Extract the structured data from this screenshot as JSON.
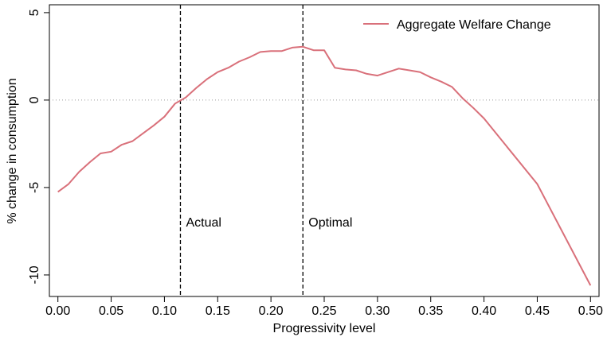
{
  "chart_data": {
    "type": "line",
    "xlabel": "Progressivity level",
    "ylabel": "% change in consumption",
    "x": [
      0.0,
      0.01,
      0.02,
      0.03,
      0.04,
      0.05,
      0.06,
      0.07,
      0.08,
      0.09,
      0.1,
      0.11,
      0.12,
      0.13,
      0.14,
      0.15,
      0.16,
      0.17,
      0.18,
      0.19,
      0.2,
      0.21,
      0.22,
      0.23,
      0.24,
      0.25,
      0.26,
      0.27,
      0.28,
      0.29,
      0.3,
      0.31,
      0.32,
      0.33,
      0.34,
      0.35,
      0.36,
      0.37,
      0.38,
      0.39,
      0.4,
      0.45,
      0.5
    ],
    "series": [
      {
        "name": "Aggregate Welfare Change",
        "color": "#d9707a",
        "values": [
          -5.25,
          -4.8,
          -4.1,
          -3.55,
          -3.05,
          -2.95,
          -2.55,
          -2.35,
          -1.9,
          -1.45,
          -0.95,
          -0.2,
          0.15,
          0.7,
          1.2,
          1.6,
          1.85,
          2.2,
          2.45,
          2.75,
          2.8,
          2.8,
          3.0,
          3.05,
          2.85,
          2.85,
          1.85,
          1.75,
          1.7,
          1.5,
          1.4,
          1.6,
          1.8,
          1.7,
          1.6,
          1.3,
          1.05,
          0.75,
          0.1,
          -0.45,
          -1.05,
          -4.8,
          -10.6
        ]
      }
    ],
    "xlim": [
      -0.008,
      0.508
    ],
    "ylim": [
      -11.23,
      5.45
    ],
    "xticks": [
      {
        "value": 0,
        "label": "0.00"
      },
      {
        "value": 0.05,
        "label": "0.05"
      },
      {
        "value": 0.1,
        "label": "0.10"
      },
      {
        "value": 0.15,
        "label": "0.15"
      },
      {
        "value": 0.2,
        "label": "0.20"
      },
      {
        "value": 0.25,
        "label": "0.25"
      },
      {
        "value": 0.3,
        "label": "0.30"
      },
      {
        "value": 0.35,
        "label": "0.35"
      },
      {
        "value": 0.4,
        "label": "0.40"
      },
      {
        "value": 0.45,
        "label": "0.45"
      },
      {
        "value": 0.5,
        "label": "0.50"
      }
    ],
    "yticks": [
      5,
      0,
      -5,
      -10
    ],
    "hline": 0,
    "vlines": [
      {
        "x": 0.115,
        "label": "Actual"
      },
      {
        "x": 0.23,
        "label": "Optimal"
      }
    ],
    "legend": "upper right"
  }
}
